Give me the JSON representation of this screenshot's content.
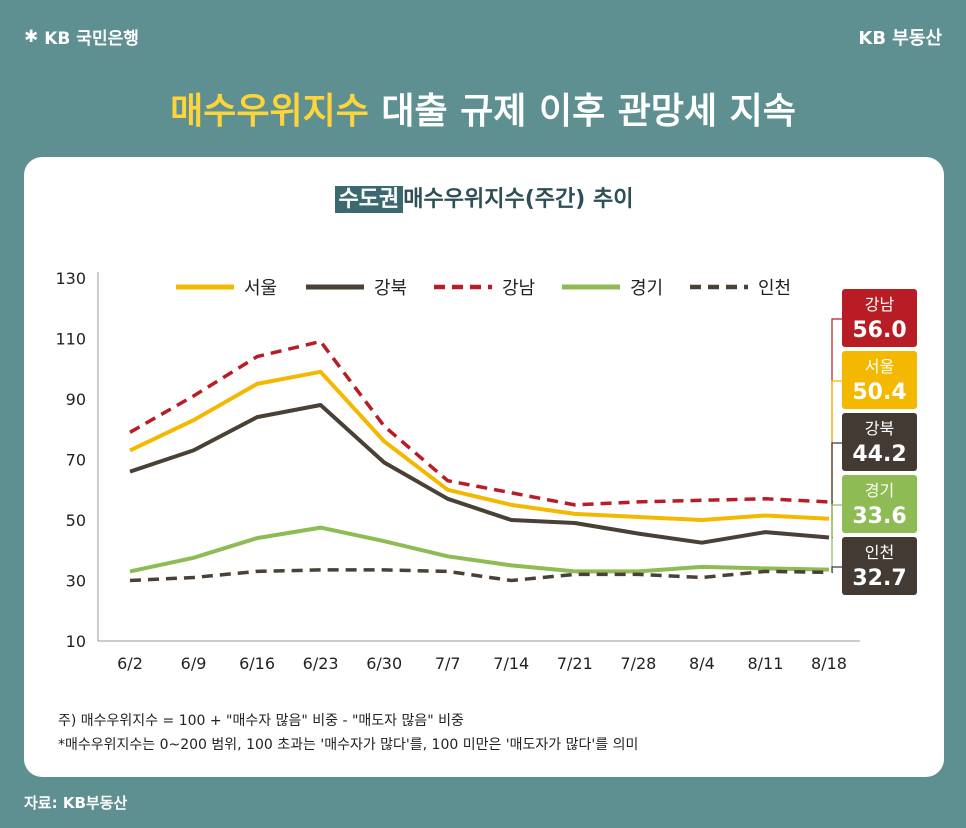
{
  "brand": {
    "left": "KB 국민은행",
    "right": "KB 부동산"
  },
  "headline": {
    "highlight": "매수우위지수",
    "rest": "대출 규제 이후 관망세 지속"
  },
  "chart_title": {
    "badge": "수도권",
    "rest": "매수우위지수(주간) 추이"
  },
  "notes": [
    "주) 매수우위지수 = 100 + \"매수자 많음\" 비중 - \"매도자 많음\" 비중",
    "*매수우위지수는 0~200 범위, 100 초과는 '매수자가 많다'를, 100 미만은 '매도자가 많다'를 의미"
  ],
  "source": "자료: KB부동산",
  "chart_data": {
    "type": "line",
    "title": "수도권 매수우위지수(주간) 추이",
    "categories": [
      "6/2",
      "6/9",
      "6/16",
      "6/23",
      "6/30",
      "7/7",
      "7/14",
      "7/21",
      "7/28",
      "8/4",
      "8/11",
      "8/18"
    ],
    "yticks": [
      130,
      110,
      90,
      70,
      50,
      30,
      10
    ],
    "ylim": [
      10,
      130
    ],
    "legend_position": "top",
    "grid": false,
    "series": [
      {
        "name": "서울",
        "color": "#f5b800",
        "dash": false,
        "values": [
          73,
          83,
          95,
          99,
          76,
          60,
          55,
          52,
          51,
          50,
          51.5,
          50.4
        ],
        "final_label": "50.4"
      },
      {
        "name": "강북",
        "color": "#4a4036",
        "dash": false,
        "values": [
          66,
          73,
          84,
          88,
          69,
          57,
          50,
          49,
          45.5,
          42.5,
          46,
          44.2
        ],
        "final_label": "44.2"
      },
      {
        "name": "강남",
        "color": "#b81c24",
        "dash": true,
        "values": [
          79,
          91,
          104,
          109,
          81,
          63,
          59,
          55,
          56,
          56.5,
          57,
          56.0
        ],
        "final_label": "56.0"
      },
      {
        "name": "경기",
        "color": "#8fbb55",
        "dash": false,
        "values": [
          33,
          37.5,
          44,
          47.5,
          43,
          38,
          35,
          33,
          33,
          34.5,
          34,
          33.6
        ],
        "final_label": "33.6"
      },
      {
        "name": "인천",
        "color": "#4a4036",
        "dash": true,
        "values": [
          30,
          31,
          33,
          33.5,
          33.5,
          33,
          30,
          32,
          32,
          31,
          33,
          32.7
        ],
        "final_label": "32.7"
      }
    ],
    "end_labels_order": [
      "강남",
      "서울",
      "강북",
      "경기",
      "인천"
    ]
  }
}
